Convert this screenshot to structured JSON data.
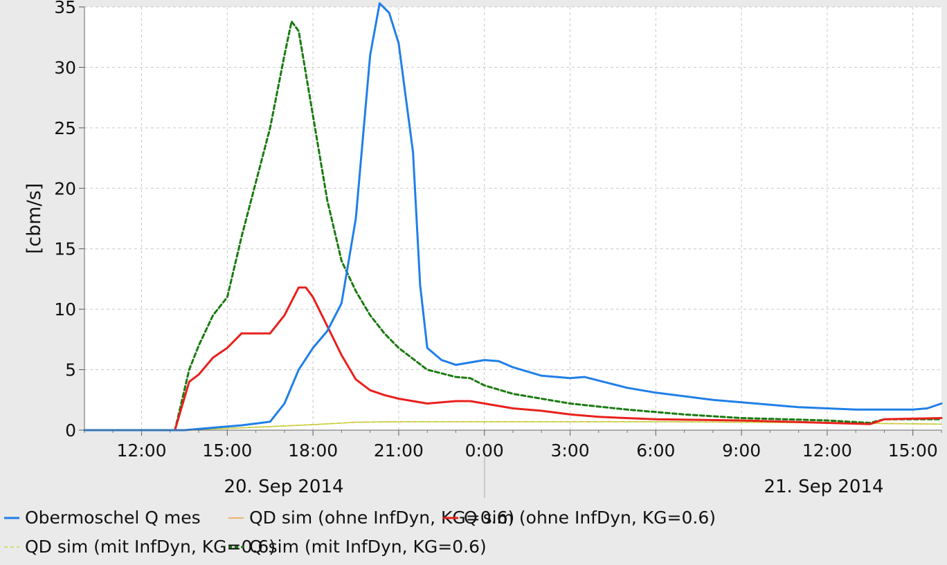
{
  "chart_data": {
    "type": "line",
    "ylabel": "[cbm/s]",
    "xlabel": "",
    "ylim": [
      0,
      35
    ],
    "yticks": [
      0,
      5,
      10,
      15,
      20,
      25,
      30,
      35
    ],
    "xlim": [
      "2014-09-20 10:00",
      "2014-09-21 16:00"
    ],
    "xtick_labels": [
      "12:00",
      "15:00",
      "18:00",
      "21:00",
      "0:00",
      "3:00",
      "6:00",
      "9:00",
      "12:00",
      "15:00"
    ],
    "date_labels": [
      "20. Sep 2014",
      "21. Sep 2014"
    ],
    "grid": true,
    "legend_position": "bottom",
    "series": [
      {
        "name": "Obermoschel Q mes",
        "color": "#1f7fe8",
        "dash": "solid",
        "x": [
          "2014-09-20 10:00",
          "2014-09-20 13:30",
          "2014-09-20 14:30",
          "2014-09-20 15:30",
          "2014-09-20 16:30",
          "2014-09-20 17:00",
          "2014-09-20 17:30",
          "2014-09-20 18:00",
          "2014-09-20 18:30",
          "2014-09-20 19:00",
          "2014-09-20 19:30",
          "2014-09-20 20:00",
          "2014-09-20 20:20",
          "2014-09-20 20:40",
          "2014-09-20 21:00",
          "2014-09-20 21:30",
          "2014-09-20 21:45",
          "2014-09-20 22:00",
          "2014-09-20 22:30",
          "2014-09-20 23:00",
          "2014-09-20 23:30",
          "2014-09-21 00:00",
          "2014-09-21 00:30",
          "2014-09-21 01:00",
          "2014-09-21 02:00",
          "2014-09-21 03:00",
          "2014-09-21 03:30",
          "2014-09-21 04:00",
          "2014-09-21 05:00",
          "2014-09-21 06:00",
          "2014-09-21 07:00",
          "2014-09-21 08:00",
          "2014-09-21 09:00",
          "2014-09-21 10:00",
          "2014-09-21 11:00",
          "2014-09-21 12:00",
          "2014-09-21 13:00",
          "2014-09-21 14:00",
          "2014-09-21 15:00",
          "2014-09-21 15:30",
          "2014-09-21 16:00"
        ],
        "y": [
          0,
          0,
          0.2,
          0.4,
          0.7,
          2.2,
          5.0,
          6.8,
          8.2,
          10.5,
          17.5,
          31.0,
          35.3,
          34.5,
          32.0,
          23.0,
          12.0,
          6.8,
          5.8,
          5.4,
          5.6,
          5.8,
          5.7,
          5.2,
          4.5,
          4.3,
          4.4,
          4.1,
          3.5,
          3.1,
          2.8,
          2.5,
          2.3,
          2.1,
          1.9,
          1.8,
          1.7,
          1.7,
          1.7,
          1.8,
          2.2
        ]
      },
      {
        "name": "QD sim (ohne InfDyn, KG=0.6)",
        "color": "#f0a040",
        "dash": "solid",
        "x": [
          "2014-09-20 10:00",
          "2014-09-20 13:30",
          "2014-09-20 15:00",
          "2014-09-20 16:30",
          "2014-09-20 18:00",
          "2014-09-20 19:30",
          "2014-09-20 21:00",
          "2014-09-21 00:00",
          "2014-09-21 03:00",
          "2014-09-21 06:00",
          "2014-09-21 09:00",
          "2014-09-21 12:00",
          "2014-09-21 14:00",
          "2014-09-21 16:00"
        ],
        "y": [
          0,
          0,
          0.15,
          0.3,
          0.45,
          0.65,
          0.7,
          0.7,
          0.7,
          0.7,
          0.65,
          0.6,
          0.55,
          0.5
        ]
      },
      {
        "name": "Q sim (ohne InfDyn, KG=0.6)",
        "color": "#e8201c",
        "dash": "solid",
        "x": [
          "2014-09-20 10:00",
          "2014-09-20 13:10",
          "2014-09-20 13:40",
          "2014-09-20 14:00",
          "2014-09-20 14:30",
          "2014-09-20 15:00",
          "2014-09-20 15:30",
          "2014-09-20 16:00",
          "2014-09-20 16:30",
          "2014-09-20 17:00",
          "2014-09-20 17:30",
          "2014-09-20 17:45",
          "2014-09-20 18:00",
          "2014-09-20 18:30",
          "2014-09-20 19:00",
          "2014-09-20 19:30",
          "2014-09-20 20:00",
          "2014-09-20 20:30",
          "2014-09-20 21:00",
          "2014-09-20 22:00",
          "2014-09-20 23:00",
          "2014-09-20 23:30",
          "2014-09-21 00:00",
          "2014-09-21 01:00",
          "2014-09-21 02:00",
          "2014-09-21 03:00",
          "2014-09-21 04:00",
          "2014-09-21 06:00",
          "2014-09-21 09:00",
          "2014-09-21 12:00",
          "2014-09-21 13:30",
          "2014-09-21 14:00",
          "2014-09-21 16:00"
        ],
        "y": [
          0,
          0,
          4.0,
          4.6,
          6.0,
          6.8,
          8.0,
          8.0,
          8.0,
          9.5,
          11.8,
          11.8,
          11.0,
          8.6,
          6.2,
          4.2,
          3.3,
          2.9,
          2.6,
          2.2,
          2.4,
          2.4,
          2.2,
          1.8,
          1.6,
          1.3,
          1.1,
          0.9,
          0.8,
          0.6,
          0.5,
          0.9,
          1.0
        ]
      },
      {
        "name": "QD sim (mit InfDyn, KG=0.6)",
        "color": "#b8e040",
        "dash": "dashed",
        "x": [
          "2014-09-20 10:00",
          "2014-09-20 13:30",
          "2014-09-20 15:00",
          "2014-09-20 16:30",
          "2014-09-20 18:00",
          "2014-09-20 19:30",
          "2014-09-20 21:00",
          "2014-09-21 00:00",
          "2014-09-21 03:00",
          "2014-09-21 06:00",
          "2014-09-21 09:00",
          "2014-09-21 12:00",
          "2014-09-21 14:00",
          "2014-09-21 16:00"
        ],
        "y": [
          0,
          0,
          0.15,
          0.3,
          0.45,
          0.65,
          0.7,
          0.7,
          0.7,
          0.7,
          0.65,
          0.6,
          0.55,
          0.5
        ]
      },
      {
        "name": "Q sim (mit InfDyn, KG=0.6)",
        "color": "#1a7a10",
        "dash": "dashed",
        "x": [
          "2014-09-20 10:00",
          "2014-09-20 13:10",
          "2014-09-20 13:40",
          "2014-09-20 14:00",
          "2014-09-20 14:30",
          "2014-09-20 15:00",
          "2014-09-20 15:30",
          "2014-09-20 16:00",
          "2014-09-20 16:30",
          "2014-09-20 17:00",
          "2014-09-20 17:15",
          "2014-09-20 17:30",
          "2014-09-20 18:00",
          "2014-09-20 18:30",
          "2014-09-20 19:00",
          "2014-09-20 19:30",
          "2014-09-20 20:00",
          "2014-09-20 20:30",
          "2014-09-20 21:00",
          "2014-09-20 22:00",
          "2014-09-20 23:00",
          "2014-09-20 23:30",
          "2014-09-21 00:00",
          "2014-09-21 01:00",
          "2014-09-21 03:00",
          "2014-09-21 05:00",
          "2014-09-21 07:00",
          "2014-09-21 09:00",
          "2014-09-21 12:00",
          "2014-09-21 13:30",
          "2014-09-21 14:00",
          "2014-09-21 16:00"
        ],
        "y": [
          0,
          0,
          5.0,
          7.0,
          9.5,
          11.0,
          16.0,
          20.5,
          25.0,
          31.0,
          33.8,
          33.0,
          26.0,
          19.0,
          14.0,
          11.5,
          9.5,
          8.0,
          6.8,
          5.0,
          4.4,
          4.3,
          3.7,
          3.0,
          2.2,
          1.7,
          1.3,
          1.0,
          0.8,
          0.6,
          0.9,
          0.9
        ]
      }
    ]
  }
}
